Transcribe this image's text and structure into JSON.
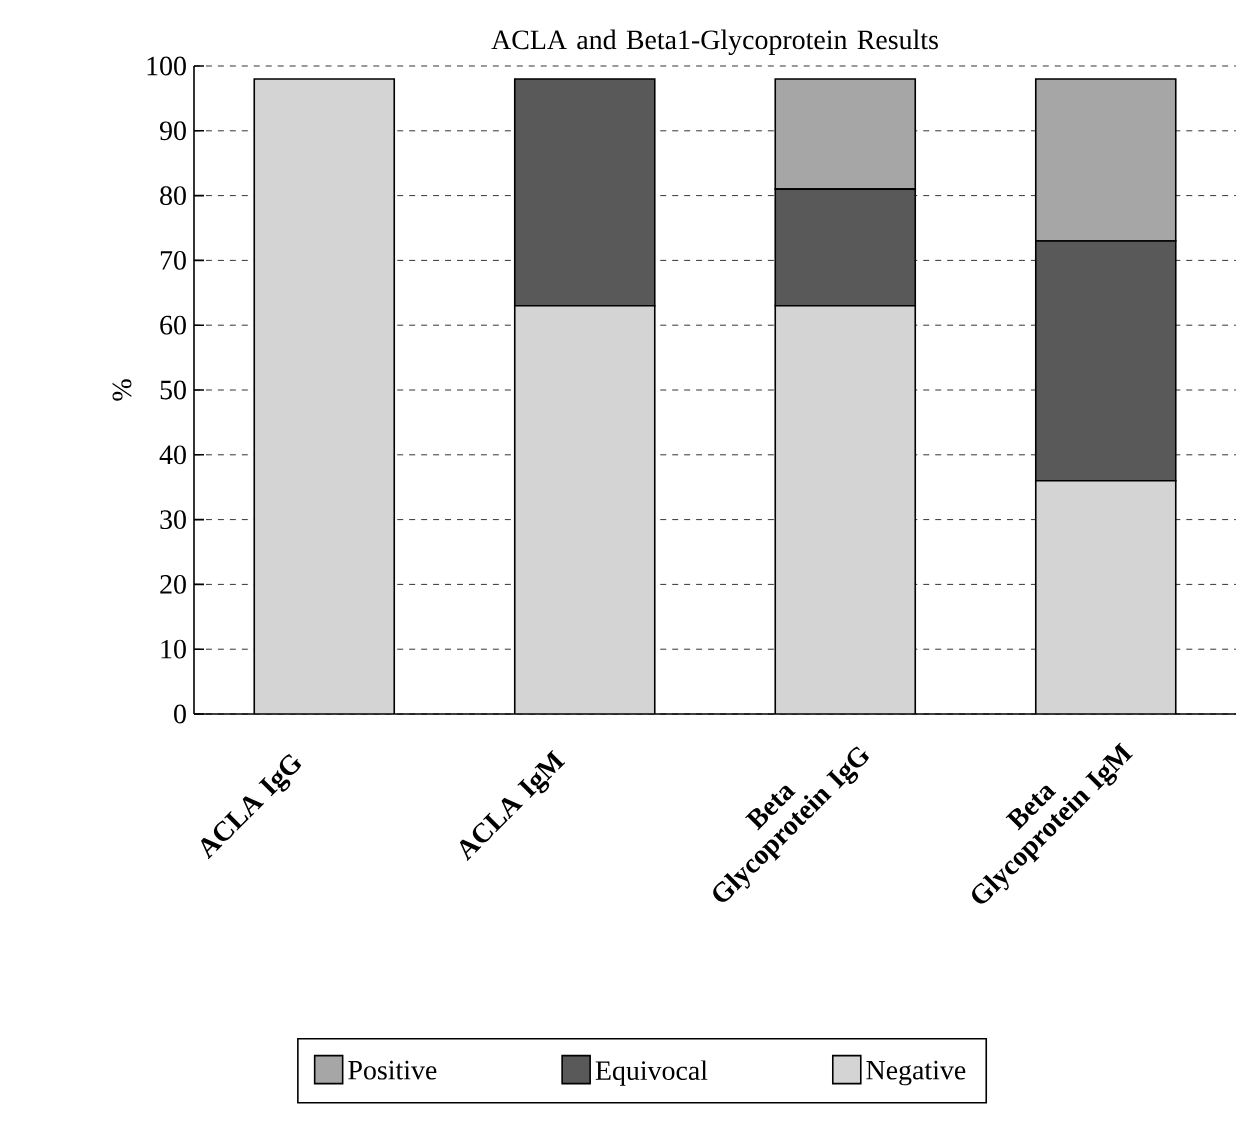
{
  "chart_data": {
    "type": "bar",
    "stacked": true,
    "title": "ACLA and Beta1-Glycoprotein Results",
    "ylabel": "%",
    "categories": [
      "ACLA IgG",
      "ACLA IgM",
      "Beta Glycoprotein IgG",
      "Beta Glycoprotein IgM"
    ],
    "series": [
      {
        "name": "Negative",
        "color": "#d4d4d4",
        "values": [
          98,
          63,
          63,
          36
        ]
      },
      {
        "name": "Equivocal",
        "color": "#595959",
        "values": [
          0,
          35,
          18,
          37
        ]
      },
      {
        "name": "Positive",
        "color": "#a6a6a6",
        "values": [
          0,
          0,
          17,
          25
        ]
      }
    ],
    "ylim": [
      0,
      100
    ],
    "yticks": [
      0,
      10,
      20,
      30,
      40,
      50,
      60,
      70,
      80,
      90,
      100
    ],
    "grid": "y",
    "legend": "bottom"
  }
}
